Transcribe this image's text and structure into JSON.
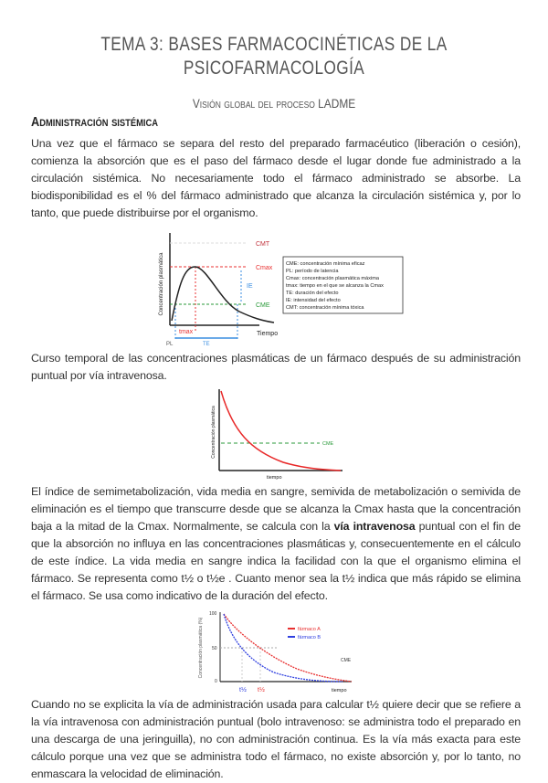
{
  "title": "TEMA 3: BASES FARMACOCINÉTICAS DE LA PSICOFARMACOLOGÍA",
  "subtitle": "Visión global del proceso LADME",
  "section_heading": "Administración sistémica",
  "paragraph1": "Una vez que el fármaco se separa del resto del preparado farmacéutico (liberación o cesión), comienza la absorción que es el paso del fármaco desde el lugar donde fue administrado a la circulación sistémica. No necesariamente todo el fármaco administrado se absorbe. La biodisponibilidad es el % del fármaco administrado que alcanza la circulación sistémica y, por lo tanto, que puede distribuirse por el organismo.",
  "figure1": {
    "ylabel": "Concentración plasmática",
    "xlabel": "Tiempo",
    "cmt": "CMT",
    "cmax": "Cmax",
    "ie": "IE",
    "cme": "CME",
    "tmax": "tmax",
    "pl": "PL",
    "te": "TE",
    "legend": [
      "CME: concentración mínima eficaz",
      "PL: período de latencia",
      "Cmax: concentración plasmática máxima",
      "tmax: tiempo en el que se alcanza la Cmax",
      "TE: duración del efecto",
      "IE: intensidad del efecto",
      "CMT: concentración mínima tóxica"
    ]
  },
  "paragraph2": "Curso temporal de las concentraciones plasmáticas de un fármaco después de su administración puntual por vía intravenosa.",
  "figure2": {
    "ylabel": "Concentración plasmática",
    "xlabel": "tiempo",
    "cme": "CME"
  },
  "paragraph3": {
    "before": "El índice de semimetabolización, vida media en sangre, semivida de metabolización o semivida de eliminación es el tiempo que transcurre desde que se alcanza la Cmax hasta que la concentración baja a la mitad de la Cmax. Normalmente, se calcula con la ",
    "bold": "vía intravenosa",
    "after": " puntual con el fin de que la absorción no influya en las concentraciones plasmáticas y, consecuentemente en el cálculo de este índice. La vida media en sangre indica la facilidad con la que el organismo elimina el fármaco. Se representa como t½ o t½e . Cuanto menor sea la t½ indica que más rápido se elimina el fármaco. Se usa como indicativo de la duración del efecto."
  },
  "figure3": {
    "ylabel": "Concentración plasmática (%)",
    "xlabel": "tiempo",
    "y100": "100",
    "y50": "50",
    "y0": "0",
    "series": [
      {
        "name": "fármaco A",
        "color": "#e83030"
      },
      {
        "name": "fármaco B",
        "color": "#3040e0"
      }
    ],
    "cme": "CME",
    "t_b": "t½",
    "t_a": "t½"
  },
  "paragraph4": "Cuando no se explicita la vía de administración usada para calcular t½ quiere decir que se refiere a la vía intravenosa con administración puntual (bolo intravenoso: se administra todo el preparado en una descarga de una jeringuilla), no con administración continua. Es la vía más exacta para este cálculo porque una vez que se administra todo el fármaco, no existe absorción y, por lo tanto, no enmascara la velocidad de eliminación."
}
